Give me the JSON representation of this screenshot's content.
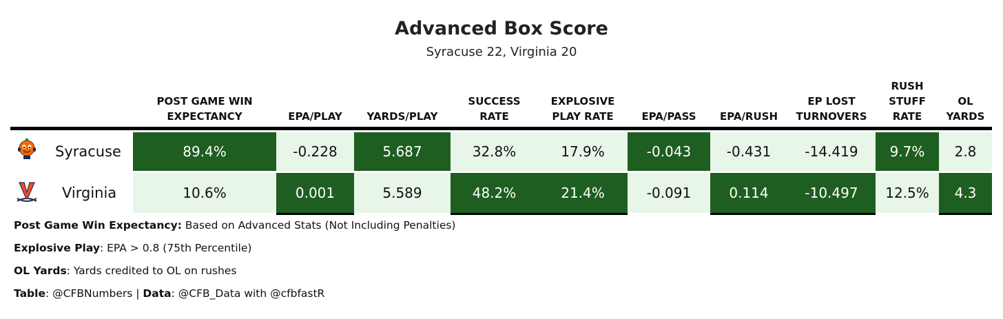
{
  "title": "Advanced Box Score",
  "subtitle": "Syracuse 22, Virginia 20",
  "colors": {
    "dark": "#1e5e20",
    "light": "#e8f5e9",
    "dark_text": "#ffffff",
    "light_text": "#111111"
  },
  "chart_data": {
    "type": "table",
    "columns": [
      {
        "key": "pgwe",
        "label_lines": [
          "POST GAME WIN",
          "EXPECTANCY"
        ]
      },
      {
        "key": "epa_play",
        "label_lines": [
          "EPA/PLAY"
        ]
      },
      {
        "key": "yards_play",
        "label_lines": [
          "YARDS/PLAY"
        ]
      },
      {
        "key": "success",
        "label_lines": [
          "SUCCESS",
          "RATE"
        ]
      },
      {
        "key": "explosive",
        "label_lines": [
          "EXPLOSIVE",
          "PLAY RATE"
        ]
      },
      {
        "key": "epa_pass",
        "label_lines": [
          "EPA/PASS"
        ]
      },
      {
        "key": "epa_rush",
        "label_lines": [
          "EPA/RUSH"
        ]
      },
      {
        "key": "ep_lost",
        "label_lines": [
          "EP LOST",
          "TURNOVERS"
        ]
      },
      {
        "key": "stuff",
        "label_lines": [
          "RUSH",
          "STUFF",
          "RATE"
        ]
      },
      {
        "key": "ol",
        "label_lines": [
          "OL",
          "YARDS"
        ]
      }
    ],
    "rows": [
      {
        "team": "Syracuse",
        "logo_icon": "syracuse-orange-mascot-icon",
        "values": [
          "89.4%",
          "-0.228",
          "5.687",
          "32.8%",
          "17.9%",
          "-0.043",
          "-0.431",
          "-14.419",
          "9.7%",
          "2.8"
        ],
        "shading": [
          "dark",
          "light",
          "dark",
          "light",
          "light",
          "dark",
          "light",
          "light",
          "dark",
          "light"
        ]
      },
      {
        "team": "Virginia",
        "logo_icon": "virginia-v-sabres-icon",
        "values": [
          "10.6%",
          "0.001",
          "5.589",
          "48.2%",
          "21.4%",
          "-0.091",
          "0.114",
          "-10.497",
          "12.5%",
          "4.3"
        ],
        "shading": [
          "light",
          "dark",
          "light",
          "dark",
          "dark",
          "light",
          "dark",
          "dark",
          "light",
          "dark"
        ]
      }
    ]
  },
  "notes": [
    {
      "label": "Post Game Win Expectancy:",
      "text": " Based on Advanced Stats (Not Including Penalties)"
    },
    {
      "label": "Explosive Play",
      "text": ": EPA > 0.8 (75th Percentile)"
    },
    {
      "label": "OL Yards",
      "text": ": Yards credited to OL on rushes"
    },
    {
      "label": "Table",
      "text": ": @CFBNumbers | ",
      "label2": "Data",
      "text2": ": @CFB_Data with @cfbfastR"
    }
  ]
}
